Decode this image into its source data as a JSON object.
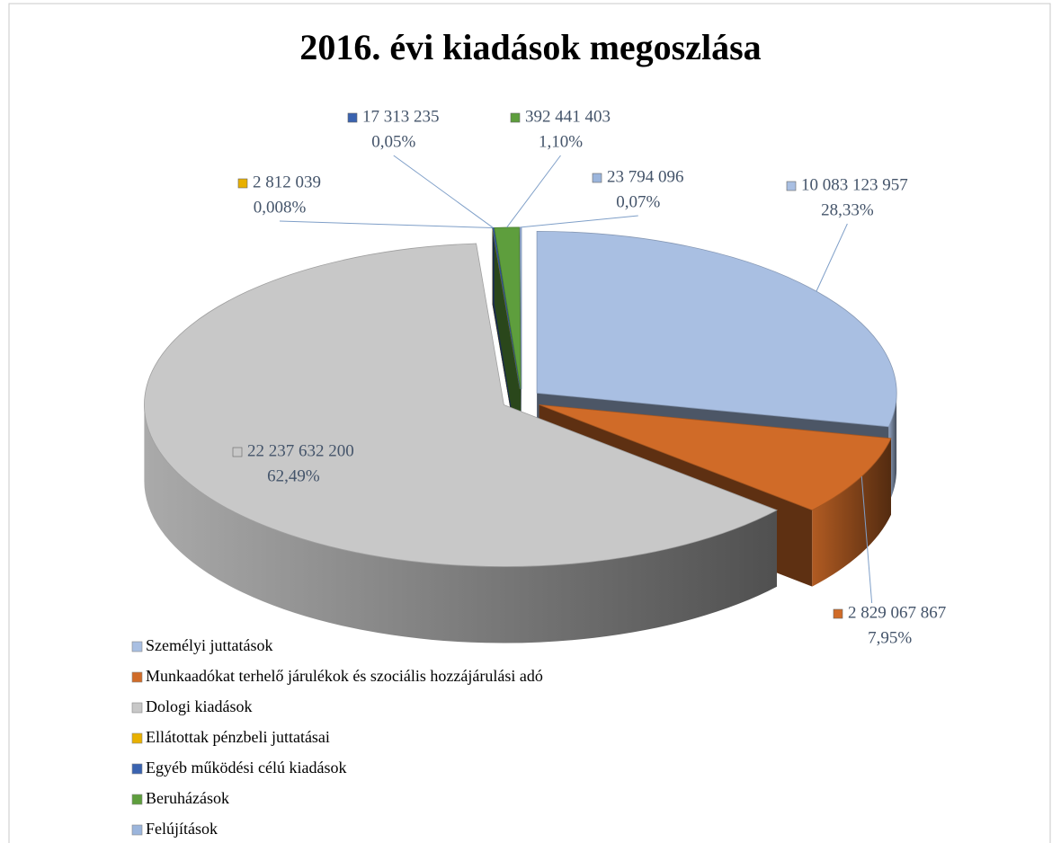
{
  "chart_data": {
    "type": "pie3d",
    "title": "2016. évi kiadások megoszlása",
    "categories": [
      "Személyi juttatások",
      "Munkaadókat terhelő járulékok és szociális hozzájárulási adó",
      "Dologi kiadások",
      "Ellátottak pénzbeli juttatásai",
      "Egyéb működési célú kiadások",
      "Beruházások",
      "Felújítások"
    ],
    "values": [
      10083123957,
      2829067867,
      22237632200,
      2812039,
      17313235,
      392441403,
      23794096
    ],
    "value_labels": [
      "10 083 123 957",
      "2 829 067 867",
      "22 237 632 200",
      "2 812 039",
      "17 313 235",
      "392 441 403",
      "23 794 096"
    ],
    "percentages": [
      28.33,
      7.95,
      62.49,
      0.008,
      0.05,
      1.1,
      0.07
    ],
    "percentage_labels": [
      "28,33%",
      "7,95%",
      "62,49%",
      "0,008%",
      "0,05%",
      "1,10%",
      "0,07%"
    ],
    "colors": [
      "#a9bfe2",
      "#d06b28",
      "#c8c8c8",
      "#e8b000",
      "#3a63b0",
      "#5e9e3d",
      "#9bb5dc"
    ],
    "legend": "bottom-left"
  }
}
